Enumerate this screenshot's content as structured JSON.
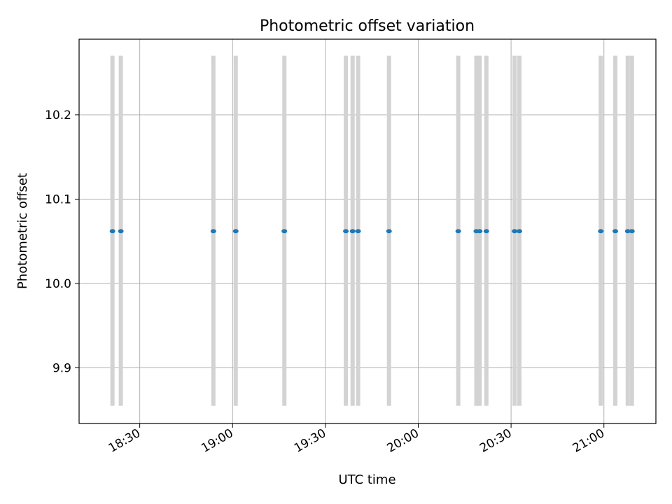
{
  "chart_data": {
    "type": "scatter",
    "title": "Photometric offset variation",
    "xlabel": "UTC time",
    "ylabel": "Photometric offset",
    "x_axis": {
      "kind": "time",
      "range": [
        "18:10:24",
        "21:16:48"
      ],
      "ticks": [
        "18:30",
        "19:00",
        "19:30",
        "20:00",
        "20:30",
        "21:00"
      ]
    },
    "y_axis": {
      "range": [
        9.834,
        10.2896
      ],
      "ticks": [
        "9.9",
        "10.0",
        "10.1",
        "10.2"
      ]
    },
    "grid": true,
    "marker_color": "#1f77b4",
    "band_color": "#d3d3d3",
    "band_y_range": [
      9.855,
      10.27
    ],
    "series": [
      {
        "x": [
          "18:21:11",
          "18:23:53",
          "18:53:48",
          "19:01:01",
          "19:16:44",
          "19:36:36",
          "19:38:47",
          "19:40:34",
          "19:50:33",
          "20:12:56",
          "20:18:46",
          "20:19:51",
          "20:22:01",
          "20:31:08",
          "20:32:41",
          "20:58:59",
          "21:03:41",
          "21:07:42",
          "21:09:03"
        ],
        "y": [
          10.062,
          10.062,
          10.062,
          10.062,
          10.062,
          10.062,
          10.062,
          10.062,
          10.062,
          10.062,
          10.062,
          10.062,
          10.062,
          10.062,
          10.062,
          10.062,
          10.062,
          10.062,
          10.062
        ]
      }
    ]
  }
}
